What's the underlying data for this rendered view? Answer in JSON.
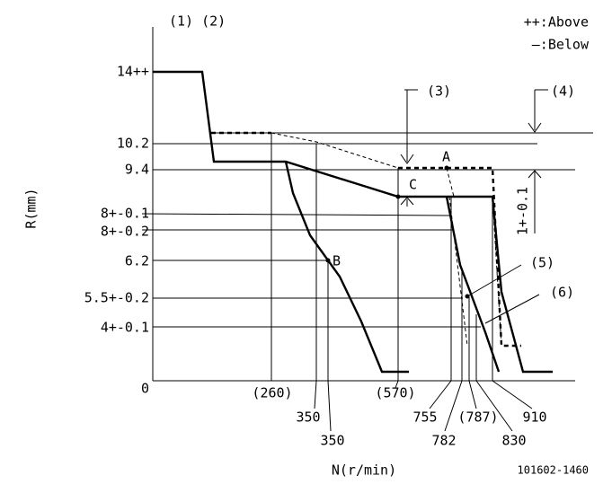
{
  "header": {
    "left": "(1) (2)",
    "legend": [
      "++:Above",
      "—:Below"
    ]
  },
  "y_labels": [
    "14++",
    "10.2",
    "9.4",
    "8+-0.1",
    "8+-0.2",
    "6.2",
    "5.5+-0.2",
    "4+-0.1",
    "0"
  ],
  "x_labels": [
    "(260)",
    "350",
    "350",
    "(570)",
    "755",
    "782",
    "(787)",
    "830",
    "910"
  ],
  "annotations": {
    "n3": "(3)",
    "n4": "(4)",
    "n5": "(5)",
    "n6": "(6)",
    "a": "A",
    "b": "B",
    "c": "C",
    "tol": "1+-0.1"
  },
  "y_title": "R(mm)",
  "x_title": "N(r/min)",
  "code": "101602-1460"
}
